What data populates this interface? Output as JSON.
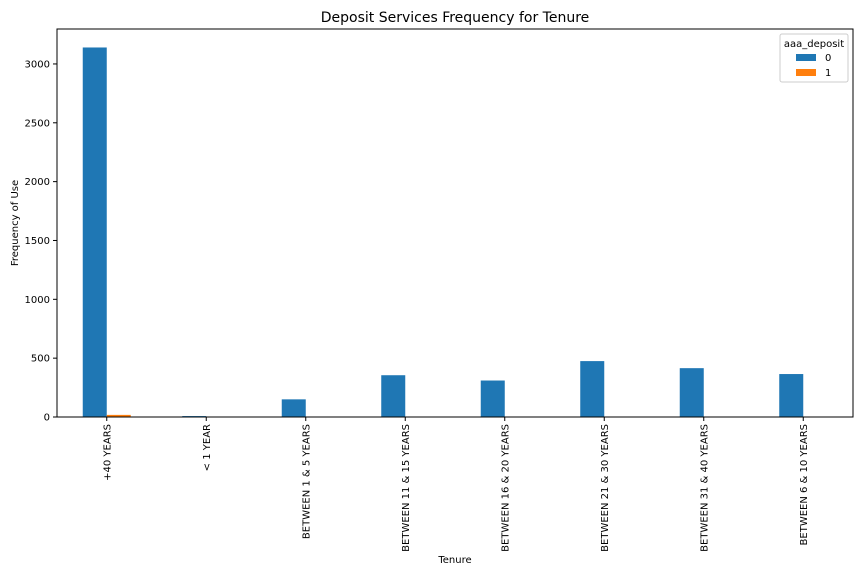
{
  "chart_data": {
    "type": "bar",
    "title": "Deposit Services Frequency for Tenure",
    "xlabel": "Tenure",
    "ylabel": "Frequency of Use",
    "categories": [
      "+40 YEARS",
      "< 1 YEAR",
      "BETWEEN 1 & 5 YEARS",
      "BETWEEN 11 & 15 YEARS",
      "BETWEEN 16 & 20 YEARS",
      "BETWEEN 21 & 30 YEARS",
      "BETWEEN 31 & 40 YEARS",
      "BETWEEN 6 & 10 YEARS"
    ],
    "series": [
      {
        "name": "0",
        "color": "#1f77b4",
        "values": [
          3140,
          8,
          150,
          355,
          310,
          475,
          415,
          365
        ]
      },
      {
        "name": "1",
        "color": "#ff7f0e",
        "values": [
          18,
          0,
          0,
          0,
          0,
          0,
          0,
          0
        ]
      }
    ],
    "ylim": [
      0,
      3297
    ],
    "yticks": [
      0,
      500,
      1000,
      1500,
      2000,
      2500,
      3000
    ],
    "legend": {
      "title": "aaa_deposit",
      "placement": "top-right"
    },
    "grid": false
  }
}
